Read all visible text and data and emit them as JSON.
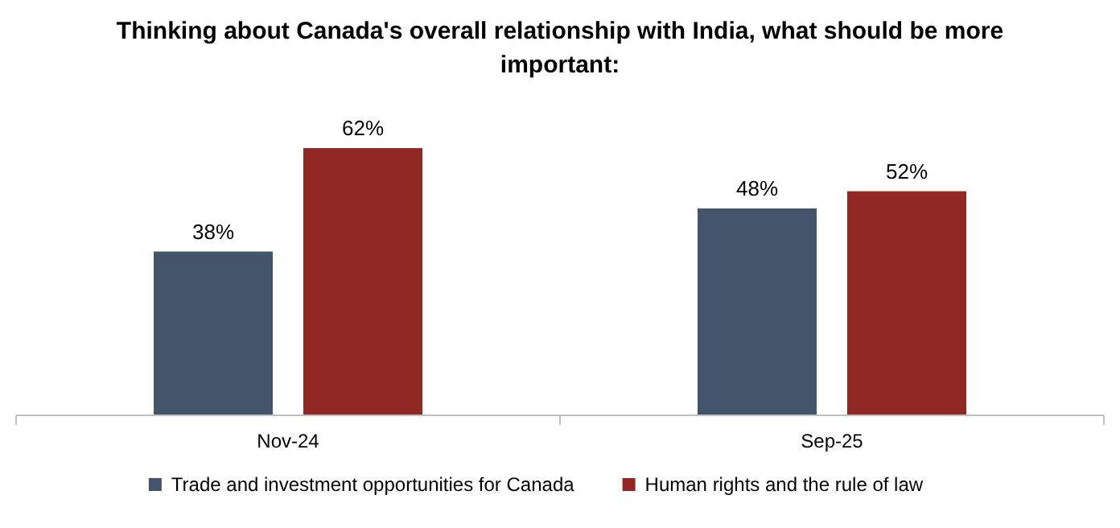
{
  "chart_data": {
    "type": "bar",
    "title": "Thinking about Canada's overall relationship with India, what should be more important:",
    "categories": [
      "Nov-24",
      "Sep-25"
    ],
    "series": [
      {
        "name": "Trade and investment opportunities for Canada",
        "color": "#44546a",
        "values": [
          38,
          48
        ],
        "value_labels": [
          "38%",
          "48%"
        ]
      },
      {
        "name": "Human rights and the rule of law",
        "color": "#922824",
        "values": [
          62,
          52
        ],
        "value_labels": [
          "62%",
          "52%"
        ]
      }
    ],
    "legend": "bottom"
  }
}
